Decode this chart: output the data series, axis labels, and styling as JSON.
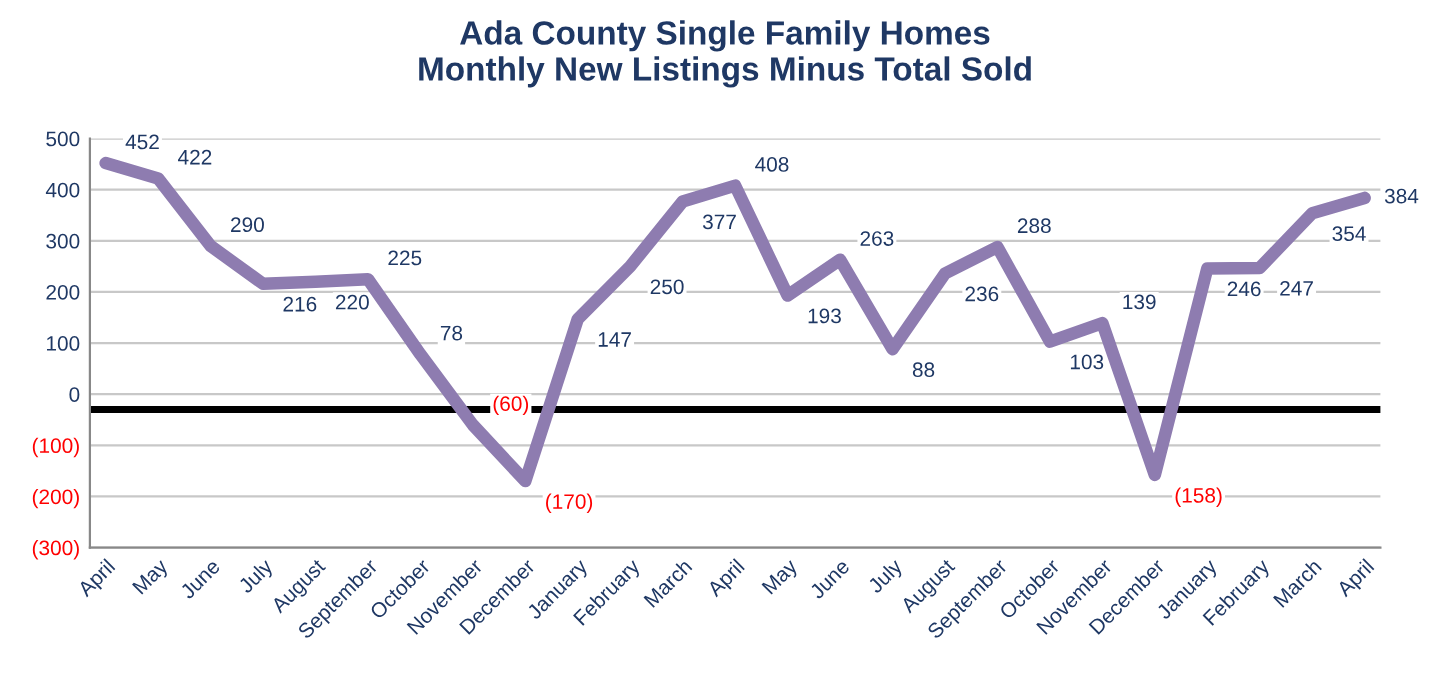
{
  "chart_data": {
    "type": "line",
    "title": "Ada County Single Family Homes\nMonthly New Listings Minus Total Sold",
    "categories": [
      "April",
      "May",
      "June",
      "July",
      "August",
      "September",
      "October",
      "November",
      "December",
      "January",
      "February",
      "March",
      "April",
      "May",
      "June",
      "July",
      "August",
      "September",
      "October",
      "November",
      "December",
      "January",
      "February",
      "March",
      "April"
    ],
    "series": [
      {
        "color": "#8e7cb0",
        "values": [
          452,
          422,
          290,
          216,
          220,
          225,
          78,
          -60,
          -170,
          147,
          250,
          377,
          408,
          193,
          263,
          88,
          236,
          288,
          103,
          139,
          -158,
          246,
          247,
          354,
          384
        ]
      }
    ],
    "value_labels": [
      "452",
      "422",
      "290",
      "216",
      "220",
      "225",
      "78",
      "(60)",
      "(170)",
      "147",
      "250",
      "377",
      "408",
      "193",
      "263",
      "88",
      "236",
      "288",
      "103",
      "139",
      "(158)",
      "246",
      "247",
      "354",
      "384"
    ],
    "ylim": [
      -300,
      500
    ],
    "yticks": [
      {
        "value": -300,
        "label": "(300)"
      },
      {
        "value": -200,
        "label": "(200)"
      },
      {
        "value": -100,
        "label": "(100)"
      },
      0,
      100,
      200,
      300,
      400,
      500
    ],
    "ref_lines": [
      {
        "axis": "y",
        "value": -30,
        "color": "#000000"
      }
    ],
    "grid": "y",
    "legend": false,
    "marker": "none",
    "line_style": "solid"
  }
}
